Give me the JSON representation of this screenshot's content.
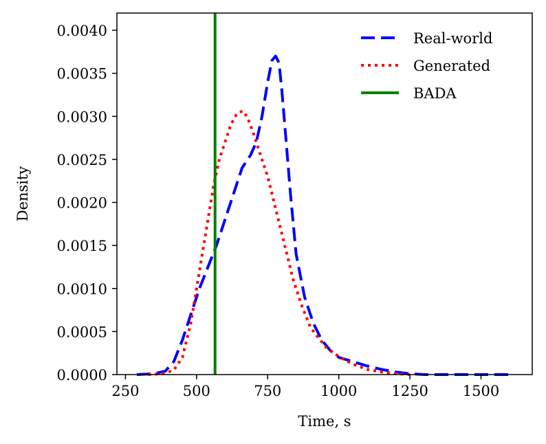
{
  "chart_data": {
    "type": "line",
    "title": "",
    "xlabel": "Time, s",
    "ylabel": "Density",
    "xlim": [
      220,
      1680
    ],
    "ylim": [
      0,
      0.0042
    ],
    "x_ticks": [
      250,
      500,
      750,
      1000,
      1250,
      1500
    ],
    "y_ticks": [
      0,
      0.0005,
      0.001,
      0.0015,
      0.002,
      0.0025,
      0.003,
      0.0035,
      0.004
    ],
    "y_tick_labels": [
      "0.0000",
      "0.0005",
      "0.0010",
      "0.0015",
      "0.0020",
      "0.0025",
      "0.0030",
      "0.0035",
      "0.0040"
    ],
    "grid": false,
    "legend_position": "top-right",
    "series": [
      {
        "name": "Real-world",
        "style": "dashed",
        "color": "#0000ff",
        "x": [
          290,
          350,
          390,
          420,
          450,
          480,
          510,
          540,
          570,
          600,
          630,
          660,
          690,
          710,
          730,
          750,
          765,
          778,
          790,
          800,
          815,
          830,
          850,
          880,
          910,
          940,
          970,
          1000,
          1050,
          1100,
          1150,
          1200,
          1250,
          1300,
          1400,
          1500,
          1600
        ],
        "y": [
          0.0,
          1e-05,
          4e-05,
          0.00015,
          0.0004,
          0.0007,
          0.001,
          0.00125,
          0.0015,
          0.0018,
          0.0021,
          0.0024,
          0.00255,
          0.0027,
          0.003,
          0.0034,
          0.00365,
          0.0037,
          0.00362,
          0.0033,
          0.0027,
          0.0021,
          0.0014,
          0.0009,
          0.0006,
          0.0004,
          0.00028,
          0.0002,
          0.00015,
          0.0001,
          6e-05,
          3e-05,
          1e-05,
          0.0,
          0.0,
          0.0,
          0.0
        ]
      },
      {
        "name": "Generated",
        "style": "dotted",
        "color": "#ff0000",
        "x": [
          330,
          380,
          420,
          450,
          480,
          510,
          540,
          560,
          580,
          600,
          620,
          640,
          650,
          665,
          680,
          700,
          720,
          750,
          780,
          810,
          840,
          870,
          900,
          930,
          960,
          1000,
          1050,
          1100,
          1150,
          1200,
          1250
        ],
        "y": [
          0.0,
          1e-05,
          5e-05,
          0.0002,
          0.0006,
          0.0012,
          0.0018,
          0.0022,
          0.0025,
          0.0027,
          0.0029,
          0.00302,
          0.00305,
          0.00306,
          0.00298,
          0.0028,
          0.0026,
          0.0023,
          0.0019,
          0.0015,
          0.0011,
          0.0008,
          0.00055,
          0.00042,
          0.0003,
          0.00021,
          0.00012,
          6e-05,
          3e-05,
          1e-05,
          0.0
        ]
      },
      {
        "name": "BADA",
        "style": "solid",
        "color": "#008000",
        "type": "vline",
        "x": 565
      }
    ]
  }
}
